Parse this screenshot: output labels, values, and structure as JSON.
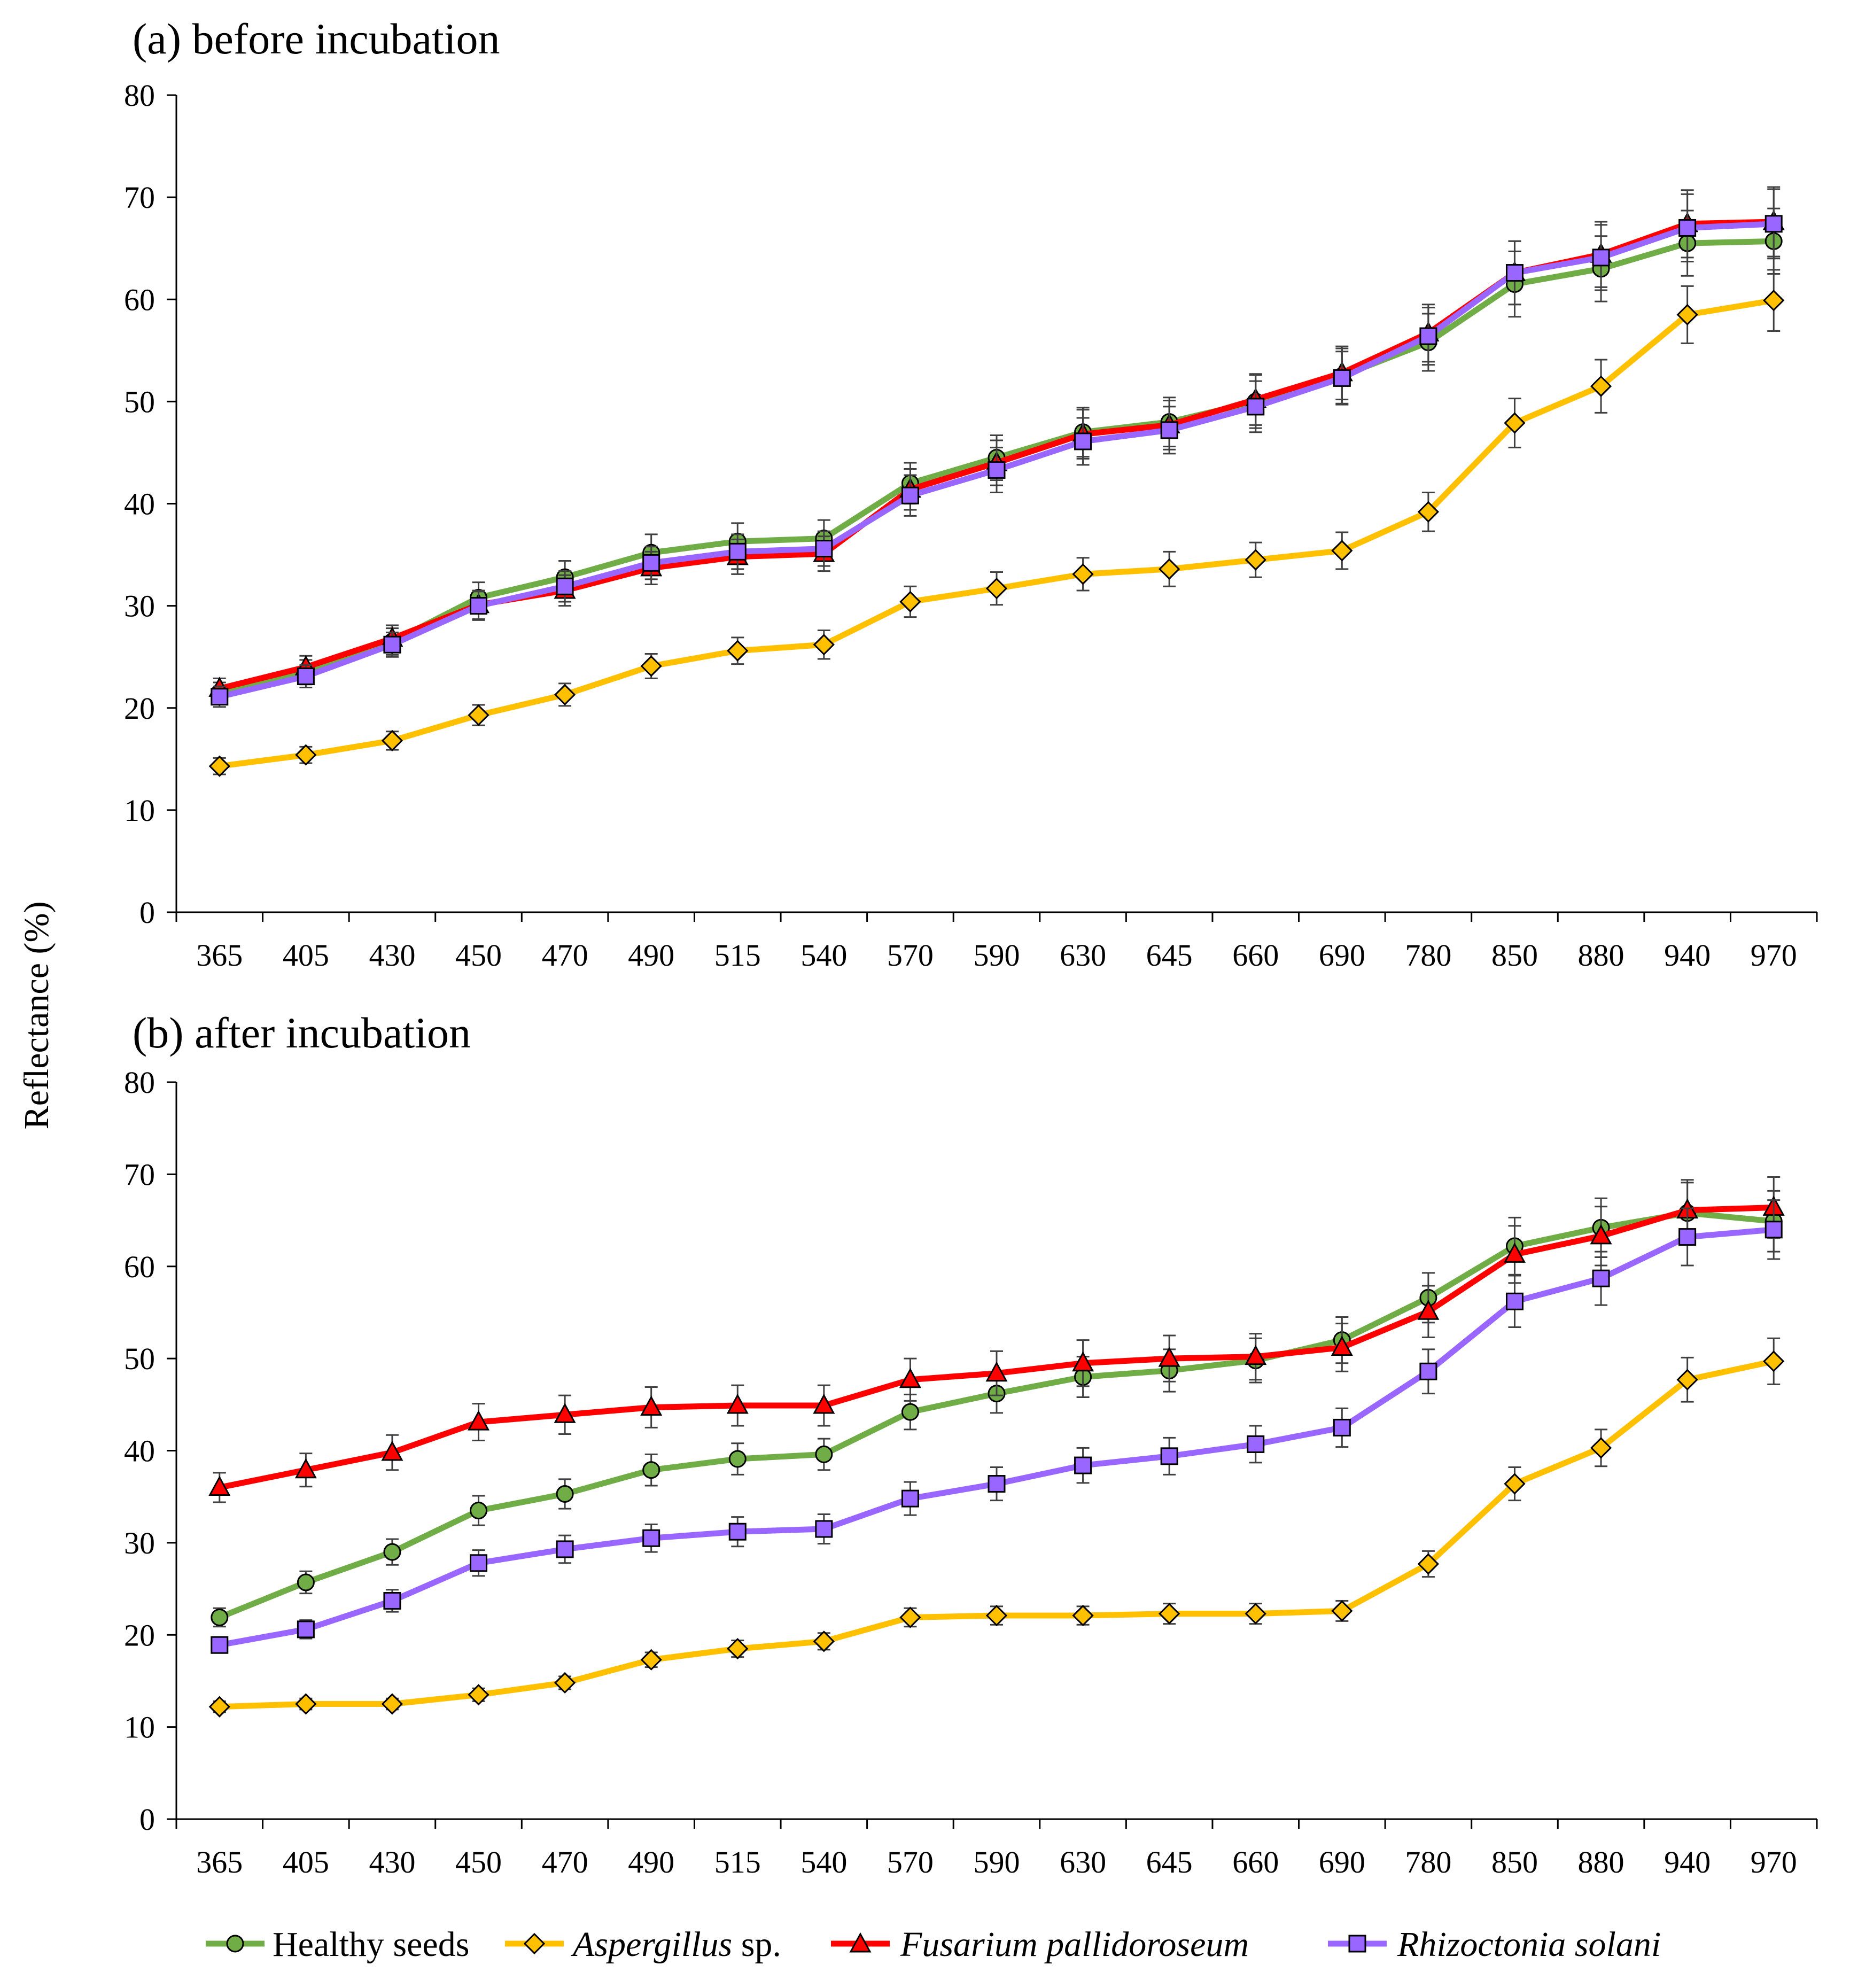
{
  "ylabel": "Reflectance (%)",
  "legend": {
    "items": [
      {
        "name": "Healthy seeds",
        "italic": "",
        "suffix": ""
      },
      {
        "name": "",
        "italic": "Aspergillus",
        "suffix": " sp."
      },
      {
        "name": "",
        "italic": "Fusarium pallidoroseum",
        "suffix": ""
      },
      {
        "name": "",
        "italic": "Rhizoctonia solani",
        "suffix": ""
      }
    ]
  },
  "chart_data": [
    {
      "type": "line",
      "title": "(a) before incubation",
      "xlabel": "",
      "ylabel": "Reflectance (%)",
      "categories": [
        "365",
        "405",
        "430",
        "450",
        "470",
        "490",
        "515",
        "540",
        "570",
        "590",
        "630",
        "645",
        "660",
        "690",
        "780",
        "850",
        "880",
        "940",
        "970"
      ],
      "ylim": [
        0,
        80
      ],
      "yticks": [
        0,
        10,
        20,
        30,
        40,
        50,
        60,
        70,
        80
      ],
      "grid": false,
      "series": [
        {
          "name": "Healthy seeds",
          "color": "#70ad47",
          "marker": "circle",
          "values": [
            21.5,
            23.5,
            26.5,
            30.8,
            32.8,
            35.2,
            36.3,
            36.6,
            42.0,
            44.5,
            47.0,
            48.0,
            50.0,
            52.5,
            55.8,
            61.5,
            63.0,
            65.5,
            65.7
          ],
          "errors": [
            1.0,
            1.2,
            1.3,
            1.5,
            1.6,
            1.8,
            1.8,
            1.8,
            2.0,
            2.2,
            2.4,
            2.4,
            2.6,
            2.7,
            2.8,
            3.2,
            3.2,
            3.2,
            3.2
          ]
        },
        {
          "name": "Aspergillus sp.",
          "color": "#ffc000",
          "marker": "diamond",
          "values": [
            14.3,
            15.4,
            16.8,
            19.3,
            21.3,
            24.1,
            25.6,
            26.2,
            30.4,
            31.7,
            33.1,
            33.6,
            34.5,
            35.4,
            39.2,
            47.9,
            51.5,
            58.5,
            59.9
          ],
          "errors": [
            0.8,
            0.8,
            0.9,
            1.0,
            1.1,
            1.2,
            1.3,
            1.4,
            1.5,
            1.6,
            1.6,
            1.7,
            1.7,
            1.8,
            1.9,
            2.4,
            2.6,
            2.8,
            3.0
          ]
        },
        {
          "name": "Fusarium pallidoroseum",
          "color": "#ff0000",
          "marker": "triangle",
          "values": [
            21.9,
            24.0,
            26.8,
            30.1,
            31.5,
            33.7,
            34.8,
            35.1,
            41.4,
            44.0,
            46.8,
            47.7,
            50.2,
            52.8,
            56.7,
            62.6,
            64.4,
            67.4,
            67.6
          ],
          "errors": [
            1.0,
            1.1,
            1.3,
            1.4,
            1.5,
            1.6,
            1.7,
            1.7,
            2.0,
            2.2,
            2.4,
            2.4,
            2.5,
            2.6,
            2.8,
            3.1,
            3.2,
            3.3,
            3.4
          ]
        },
        {
          "name": "Rhizoctonia solani",
          "color": "#9966ff",
          "marker": "square",
          "values": [
            21.1,
            23.1,
            26.2,
            30.0,
            31.9,
            34.2,
            35.3,
            35.6,
            40.8,
            43.3,
            46.1,
            47.2,
            49.5,
            52.3,
            56.4,
            62.6,
            64.1,
            67.0,
            67.4
          ],
          "errors": [
            1.0,
            1.1,
            1.2,
            1.4,
            1.5,
            1.6,
            1.7,
            1.7,
            2.0,
            2.2,
            2.3,
            2.3,
            2.5,
            2.6,
            2.8,
            3.1,
            3.2,
            3.3,
            3.4
          ]
        }
      ]
    },
    {
      "type": "line",
      "title": "(b) after incubation",
      "xlabel": "",
      "ylabel": "Reflectance (%)",
      "categories": [
        "365",
        "405",
        "430",
        "450",
        "470",
        "490",
        "515",
        "540",
        "570",
        "590",
        "630",
        "645",
        "660",
        "690",
        "780",
        "850",
        "880",
        "940",
        "970"
      ],
      "ylim": [
        0,
        80
      ],
      "yticks": [
        0,
        10,
        20,
        30,
        40,
        50,
        60,
        70,
        80
      ],
      "grid": false,
      "series": [
        {
          "name": "Healthy seeds",
          "color": "#70ad47",
          "marker": "circle",
          "values": [
            21.9,
            25.7,
            29.0,
            33.5,
            35.3,
            37.9,
            39.1,
            39.6,
            44.2,
            46.2,
            48.0,
            48.7,
            49.8,
            52.0,
            56.6,
            62.2,
            64.2,
            65.8,
            64.9
          ],
          "errors": [
            1.0,
            1.2,
            1.4,
            1.6,
            1.6,
            1.7,
            1.7,
            1.7,
            1.9,
            2.1,
            2.2,
            2.3,
            2.4,
            2.5,
            2.7,
            3.1,
            3.2,
            3.3,
            3.3
          ]
        },
        {
          "name": "Aspergillus sp.",
          "color": "#ffc000",
          "marker": "diamond",
          "values": [
            12.2,
            12.5,
            12.5,
            13.5,
            14.8,
            17.3,
            18.5,
            19.3,
            21.9,
            22.1,
            22.1,
            22.3,
            22.3,
            22.6,
            27.7,
            36.4,
            40.3,
            47.7,
            49.7
          ],
          "errors": [
            0.6,
            0.6,
            0.6,
            0.7,
            0.7,
            0.8,
            0.9,
            0.9,
            1.0,
            1.0,
            1.0,
            1.1,
            1.1,
            1.1,
            1.4,
            1.8,
            2.0,
            2.4,
            2.5
          ]
        },
        {
          "name": "Fusarium pallidoroseum",
          "color": "#ff0000",
          "marker": "triangle",
          "values": [
            36.0,
            37.9,
            39.8,
            43.1,
            43.9,
            44.7,
            44.9,
            44.9,
            47.7,
            48.4,
            49.5,
            50.0,
            50.2,
            51.2,
            55.1,
            61.3,
            63.3,
            66.1,
            66.4
          ],
          "errors": [
            1.6,
            1.8,
            1.9,
            2.0,
            2.1,
            2.2,
            2.2,
            2.2,
            2.3,
            2.4,
            2.5,
            2.5,
            2.5,
            2.6,
            2.8,
            3.1,
            3.2,
            3.3,
            3.3
          ]
        },
        {
          "name": "Rhizoctonia solani",
          "color": "#9966ff",
          "marker": "square",
          "values": [
            18.9,
            20.6,
            23.7,
            27.8,
            29.3,
            30.5,
            31.2,
            31.5,
            34.8,
            36.4,
            38.4,
            39.4,
            40.7,
            42.5,
            48.6,
            56.2,
            58.7,
            63.2,
            64.0
          ],
          "errors": [
            0.8,
            1.0,
            1.2,
            1.4,
            1.5,
            1.5,
            1.6,
            1.6,
            1.8,
            1.8,
            1.9,
            2.0,
            2.0,
            2.1,
            2.4,
            2.8,
            2.9,
            3.1,
            3.2
          ]
        }
      ]
    }
  ]
}
